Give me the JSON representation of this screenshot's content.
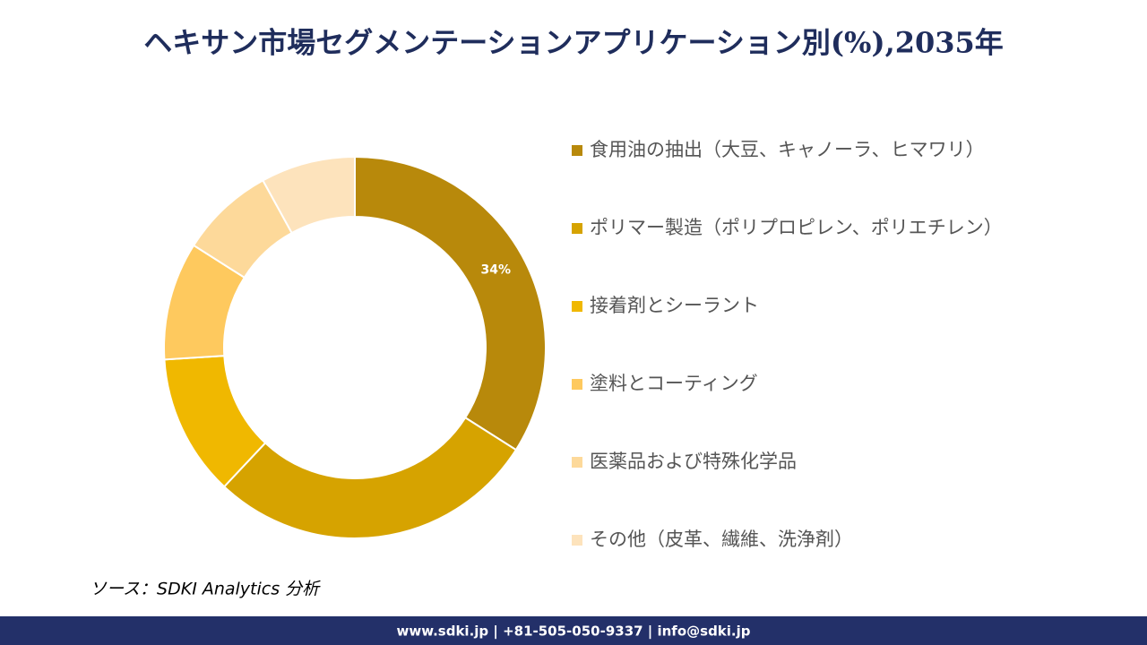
{
  "chart_data": {
    "type": "donut",
    "title": "ヘキサン市場セグメンテーションアプリケーション別(%),2035年",
    "categories": [
      "食用油の抽出（大豆、キャノーラ、ヒマワリ）",
      "ポリマー製造（ポリプロピレン、ポリエチレン）",
      "接着剤とシーラント",
      "塗料とコーティング",
      "医薬品および特殊化学品",
      "その他（皮革、繊維、洗浄剤）"
    ],
    "values": [
      34,
      28,
      12,
      10,
      8,
      8
    ],
    "value_labels": [
      "34%",
      null,
      null,
      null,
      null,
      null
    ],
    "colors": [
      "#b8890b",
      "#d6a300",
      "#f0b800",
      "#fec95e",
      "#fdd99a",
      "#fde3bc"
    ],
    "legend": "right",
    "source": "ソース：SDKI Analytics 分析",
    "footer": "www.sdki.jp | +81-505-050-9337 | info@sdki.jp"
  }
}
